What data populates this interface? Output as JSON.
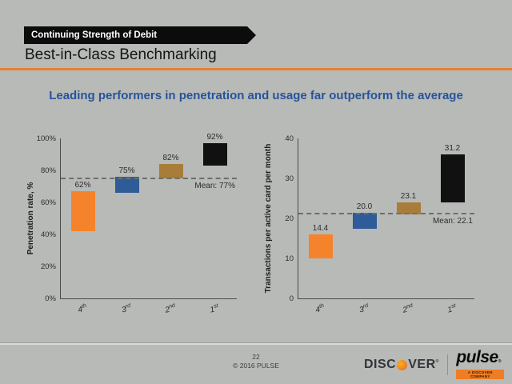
{
  "slide": {
    "banner_label": "Continuing Strength of Debit",
    "title": "Best-in-Class Benchmarking",
    "subtitle": "Leading performers in penetration and usage far outperform the average"
  },
  "footer": {
    "page_number": "22",
    "copyright": "© 2016 PULSE"
  },
  "logos": {
    "discover_prefix": "DISC",
    "discover_suffix": "VER",
    "discover_reg": "®",
    "pulse_name": "pulse",
    "pulse_reg": "®",
    "pulse_tagline": "A DISCOVER COMPANY"
  },
  "colors": {
    "background": "#b7bab7",
    "accent_orange": "#e5812e",
    "subtitle_blue": "#27539b",
    "bar_orange": "#f5832b",
    "bar_blue": "#2f5b98",
    "bar_tan": "#a87d3a",
    "bar_black": "#111111",
    "mean_line_gray": "#6e6e6e"
  },
  "chart_data": [
    {
      "type": "bar",
      "subtype": "floating-range-bars",
      "title": "",
      "ylabel": "Penetration rate, %",
      "xlabel": "",
      "ylim": [
        0,
        100
      ],
      "grid": false,
      "legend": false,
      "yticks": [
        {
          "value": 0,
          "label": "0%"
        },
        {
          "value": 20,
          "label": "20%"
        },
        {
          "value": 40,
          "label": "40%"
        },
        {
          "value": 60,
          "label": "60%"
        },
        {
          "value": 80,
          "label": "80%"
        },
        {
          "value": 100,
          "label": "100%"
        }
      ],
      "categories": [
        {
          "base": "4",
          "sup": "th"
        },
        {
          "base": "3",
          "sup": "rd"
        },
        {
          "base": "2",
          "sup": "nd"
        },
        {
          "base": "1",
          "sup": "st"
        }
      ],
      "bars": [
        {
          "category": "4th",
          "low": 42,
          "high": 67,
          "value_label": "62%",
          "color": "#f5832b"
        },
        {
          "category": "3rd",
          "low": 66,
          "high": 76,
          "value_label": "75%",
          "color": "#2f5b98"
        },
        {
          "category": "2nd",
          "low": 75,
          "high": 84,
          "value_label": "82%",
          "color": "#a87d3a"
        },
        {
          "category": "1st",
          "low": 83,
          "high": 97,
          "value_label": "92%",
          "color": "#111111"
        }
      ],
      "mean_label": "Mean: 77%",
      "mean_value": 77,
      "mean_line_position": 75.3
    },
    {
      "type": "bar",
      "subtype": "floating-range-bars",
      "title": "",
      "ylabel": "Transactions per active card per month",
      "xlabel": "",
      "ylim": [
        0,
        40
      ],
      "grid": false,
      "legend": false,
      "yticks": [
        {
          "value": 0,
          "label": "0"
        },
        {
          "value": 10,
          "label": "10"
        },
        {
          "value": 20,
          "label": "20"
        },
        {
          "value": 30,
          "label": "30"
        },
        {
          "value": 40,
          "label": "40"
        }
      ],
      "categories": [
        {
          "base": "4",
          "sup": "th"
        },
        {
          "base": "3",
          "sup": "rd"
        },
        {
          "base": "2",
          "sup": "nd"
        },
        {
          "base": "1",
          "sup": "st"
        }
      ],
      "bars": [
        {
          "category": "4th",
          "low": 10,
          "high": 16,
          "value_label": "14.4",
          "color": "#f5832b"
        },
        {
          "category": "3rd",
          "low": 17.5,
          "high": 21.5,
          "value_label": "20.0",
          "color": "#2f5b98"
        },
        {
          "category": "2nd",
          "low": 21,
          "high": 24,
          "value_label": "23.1",
          "color": "#a87d3a"
        },
        {
          "category": "1st",
          "low": 24,
          "high": 36,
          "value_label": "31.2",
          "color": "#111111"
        }
      ],
      "mean_label": "Mean: 22.1",
      "mean_value": 22.1,
      "mean_line_position": 21.5
    }
  ]
}
